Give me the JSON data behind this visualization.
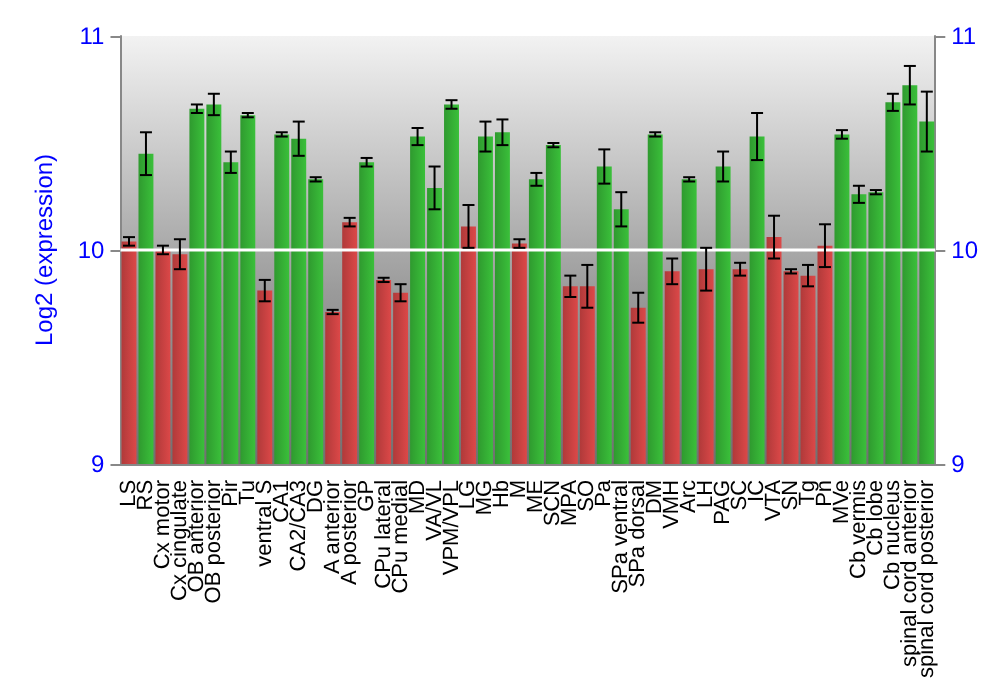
{
  "chart_data": {
    "type": "bar",
    "ylabel": "Log2 (expression)",
    "categories": [
      "LS",
      "RS",
      "Cx motor",
      "Cx cingulate",
      "OB anterior",
      "OB posterior",
      "Pir",
      "Tu",
      "ventral S",
      "CA1",
      "CA2/CA3",
      "DG",
      "A anterior",
      "A posterior",
      "GP",
      "CPu lateral",
      "CPu medial",
      "MD",
      "VA/VL",
      "VPM/VPL",
      "LG",
      "MG",
      "Hb",
      "M",
      "ME",
      "SCN",
      "MPA",
      "SO",
      "Pa",
      "SPa ventral",
      "SPa dorsal",
      "DM",
      "VMH",
      "Arc",
      "LH",
      "PAG",
      "SC",
      "IC",
      "VTA",
      "SN",
      "Tg",
      "Pn",
      "MVe",
      "Cb vermis",
      "Cb lobe",
      "Cb nucleus",
      "spinal cord anterior",
      "spinal cord posterior"
    ],
    "values": [
      10.04,
      10.45,
      10.0,
      9.98,
      10.66,
      10.68,
      10.41,
      10.63,
      9.81,
      10.54,
      10.52,
      10.33,
      9.71,
      10.13,
      10.41,
      9.86,
      9.8,
      10.53,
      10.29,
      10.68,
      10.11,
      10.53,
      10.55,
      10.03,
      10.33,
      10.49,
      9.83,
      9.83,
      10.39,
      10.19,
      9.73,
      10.54,
      9.9,
      10.33,
      9.91,
      10.39,
      9.91,
      10.53,
      10.06,
      9.9,
      9.88,
      10.02,
      10.54,
      10.26,
      10.27,
      10.69,
      10.77,
      10.6
    ],
    "errors": [
      0.02,
      0.1,
      0.02,
      0.07,
      0.02,
      0.05,
      0.05,
      0.01,
      0.05,
      0.01,
      0.08,
      0.01,
      0.01,
      0.02,
      0.02,
      0.01,
      0.04,
      0.04,
      0.1,
      0.02,
      0.1,
      0.07,
      0.06,
      0.02,
      0.03,
      0.01,
      0.05,
      0.1,
      0.08,
      0.08,
      0.07,
      0.01,
      0.06,
      0.01,
      0.1,
      0.07,
      0.03,
      0.11,
      0.1,
      0.01,
      0.05,
      0.1,
      0.02,
      0.04,
      0.01,
      0.04,
      0.09,
      0.14
    ],
    "colors": [
      "#b03a3a",
      "#2f9a2f",
      "#b03a3a",
      "#b03a3a",
      "#2f9a2f",
      "#2f9a2f",
      "#2f9a2f",
      "#2f9a2f",
      "#b03a3a",
      "#2f9a2f",
      "#2f9a2f",
      "#2f9a2f",
      "#b03a3a",
      "#b03a3a",
      "#2f9a2f",
      "#b03a3a",
      "#b03a3a",
      "#2f9a2f",
      "#2f9a2f",
      "#2f9a2f",
      "#b03a3a",
      "#2f9a2f",
      "#2f9a2f",
      "#b03a3a",
      "#2f9a2f",
      "#2f9a2f",
      "#b03a3a",
      "#b03a3a",
      "#2f9a2f",
      "#2f9a2f",
      "#b03a3a",
      "#2f9a2f",
      "#b03a3a",
      "#2f9a2f",
      "#b03a3a",
      "#2f9a2f",
      "#b03a3a",
      "#2f9a2f",
      "#b03a3a",
      "#b03a3a",
      "#b03a3a",
      "#b03a3a",
      "#2f9a2f",
      "#2f9a2f",
      "#2f9a2f",
      "#2f9a2f",
      "#2f9a2f",
      "#2f9a2f"
    ],
    "ylim": [
      9,
      11
    ],
    "yticks": [
      9,
      10,
      11
    ],
    "y2lim": [
      9,
      11
    ],
    "y2ticks": [
      9,
      10,
      11
    ],
    "ref_lines": [
      {
        "axis": "y",
        "value": 10,
        "color": "#ffffff"
      }
    ]
  }
}
